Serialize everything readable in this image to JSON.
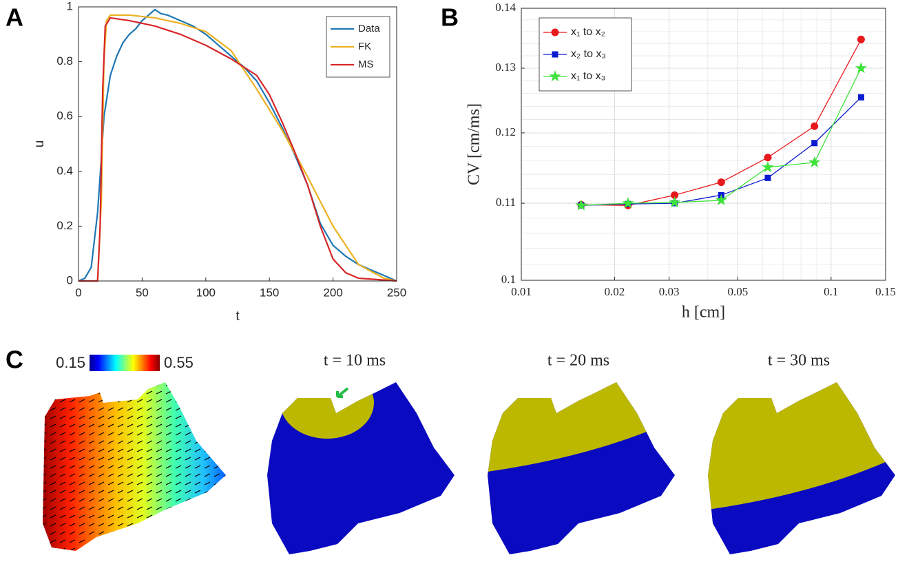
{
  "panel_labels": [
    "A",
    "B",
    "C"
  ],
  "chart_data": [
    {
      "type": "line",
      "x_label": "t",
      "y_label": "u",
      "xlim": [
        0,
        250
      ],
      "xticks": [
        0,
        50,
        100,
        150,
        200,
        250
      ],
      "ylim": [
        0,
        1
      ],
      "yticks": [
        0,
        0.2,
        0.4,
        0.6,
        0.8,
        1
      ],
      "grid": false,
      "log_x": false,
      "log_y": false,
      "legend": "upper right",
      "series": [
        {
          "name": "Data",
          "color": "#1f77b4",
          "marker": "none",
          "x": [
            0,
            5,
            10,
            15,
            18,
            20,
            25,
            30,
            35,
            40,
            45,
            50,
            55,
            60,
            65,
            70,
            80,
            90,
            100,
            110,
            120,
            130,
            140,
            150,
            160,
            170,
            180,
            190,
            200,
            210,
            220,
            230,
            240,
            250
          ],
          "values": [
            0,
            0.01,
            0.05,
            0.25,
            0.45,
            0.6,
            0.75,
            0.82,
            0.87,
            0.9,
            0.92,
            0.95,
            0.97,
            0.99,
            0.975,
            0.97,
            0.95,
            0.93,
            0.9,
            0.86,
            0.82,
            0.78,
            0.73,
            0.65,
            0.56,
            0.46,
            0.35,
            0.21,
            0.13,
            0.09,
            0.06,
            0.04,
            0.02,
            0
          ]
        },
        {
          "name": "FK",
          "color": "#edb120",
          "marker": "none",
          "x": [
            0,
            15,
            18,
            20,
            22,
            25,
            40,
            60,
            80,
            100,
            120,
            140,
            160,
            180,
            200,
            220,
            240,
            250
          ],
          "values": [
            0,
            0,
            0.3,
            0.8,
            0.95,
            0.97,
            0.97,
            0.96,
            0.94,
            0.91,
            0.84,
            0.7,
            0.55,
            0.38,
            0.2,
            0.06,
            0.01,
            0
          ]
        },
        {
          "name": "MS",
          "color": "#d62728",
          "marker": "none",
          "x": [
            0,
            15,
            17,
            19,
            21,
            25,
            40,
            60,
            80,
            100,
            120,
            140,
            150,
            160,
            170,
            180,
            190,
            200,
            210,
            220,
            250
          ],
          "values": [
            0,
            0,
            0.2,
            0.7,
            0.93,
            0.96,
            0.95,
            0.93,
            0.9,
            0.86,
            0.81,
            0.75,
            0.68,
            0.58,
            0.47,
            0.35,
            0.2,
            0.08,
            0.03,
            0.01,
            0
          ]
        }
      ]
    },
    {
      "type": "line",
      "x_label": "h [cm]",
      "y_label": "CV [cm/ms]",
      "xlim": [
        0.01,
        0.15
      ],
      "xticks": [
        0.01,
        0.02,
        0.03,
        0.05,
        0.1,
        0.15
      ],
      "ylim": [
        0.1,
        0.14
      ],
      "yticks": [
        0.1,
        0.11,
        0.12,
        0.13,
        0.14
      ],
      "grid": true,
      "log_x": true,
      "log_y": true,
      "legend": "upper left",
      "series": [
        {
          "name": "x₁ to x₂",
          "color": "#e8191c",
          "marker": "circle",
          "x": [
            0.0156,
            0.0221,
            0.03125,
            0.0442,
            0.0625,
            0.0884,
            0.125
          ],
          "values": [
            0.1098,
            0.1097,
            0.1111,
            0.1129,
            0.1164,
            0.121,
            0.1347
          ]
        },
        {
          "name": "x₂ to x₃",
          "color": "#0a1ad0",
          "marker": "square",
          "x": [
            0.0156,
            0.0221,
            0.03125,
            0.0442,
            0.0625,
            0.0884,
            0.125
          ],
          "values": [
            0.1097,
            0.1099,
            0.11,
            0.1111,
            0.1135,
            0.1185,
            0.1254
          ]
        },
        {
          "name": "x₁ to x₃",
          "color": "#3ee23a",
          "marker": "star",
          "x": [
            0.0156,
            0.0221,
            0.03125,
            0.0442,
            0.0625,
            0.0884,
            0.125
          ],
          "values": [
            0.1097,
            0.11,
            0.1101,
            0.1104,
            0.115,
            0.1157,
            0.13
          ]
        }
      ]
    }
  ],
  "panel_c": {
    "colorbar_ticks": [
      0.15,
      0.55
    ],
    "titles": [
      "t = 10 ms",
      "t = 20 ms",
      "t = 30 ms"
    ]
  }
}
